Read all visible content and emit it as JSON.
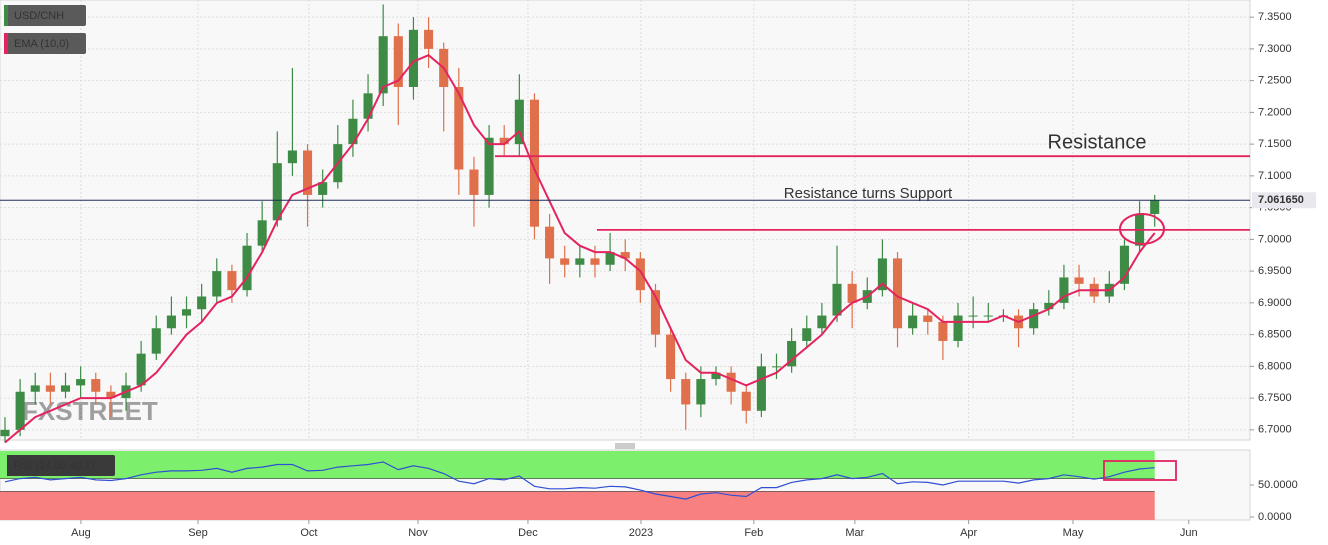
{
  "chart_data": [
    {
      "type": "candlestick",
      "watermark": "FXSTREET",
      "categories": [
        null,
        null,
        null,
        null,
        null,
        null,
        null,
        null,
        null,
        null,
        null,
        null,
        null,
        null,
        null,
        null,
        null,
        null,
        null,
        null,
        null,
        null,
        null,
        null,
        null,
        null,
        null,
        null,
        null,
        null,
        null,
        null,
        null,
        null,
        null,
        null,
        null,
        null,
        null,
        null,
        null,
        null,
        null,
        null,
        null,
        null,
        null,
        null,
        null,
        null,
        null,
        null,
        null,
        null,
        null,
        null,
        null,
        null,
        null,
        null,
        null,
        null,
        null,
        null,
        null,
        null,
        null,
        null,
        null,
        null,
        null,
        null,
        null,
        null,
        null,
        null,
        null
      ],
      "xlim": [
        -0.33,
        82.3
      ],
      "ylim": [
        6.684,
        7.377
      ],
      "yticks": [
        {
          "value": 6.7,
          "label": "6.7000"
        },
        {
          "value": 6.75,
          "label": "6.7500"
        },
        {
          "value": 6.8,
          "label": "6.8000"
        },
        {
          "value": 6.85,
          "label": "6.8500"
        },
        {
          "value": 6.9,
          "label": "6.9000"
        },
        {
          "value": 6.95,
          "label": "6.9500"
        },
        {
          "value": 7.0,
          "label": "7.0000"
        },
        {
          "value": 7.05,
          "label": "7.0500"
        },
        {
          "value": 7.1,
          "label": "7.1000"
        },
        {
          "value": 7.15,
          "label": "7.1500"
        },
        {
          "value": 7.2,
          "label": "7.2000"
        },
        {
          "value": 7.25,
          "label": "7.2500"
        },
        {
          "value": 7.3,
          "label": "7.3000"
        },
        {
          "value": 7.35,
          "label": "7.3500"
        }
      ],
      "grid": true,
      "series": [
        {
          "name": "USD/CNH",
          "up_color": "#3d8b45",
          "down_color": "#e0704c",
          "open": [
            6.69,
            6.7,
            6.76,
            6.77,
            6.76,
            6.77,
            6.78,
            6.76,
            6.75,
            6.77,
            6.82,
            6.86,
            6.88,
            6.89,
            6.91,
            6.95,
            6.92,
            6.99,
            7.03,
            7.12,
            7.14,
            7.07,
            7.09,
            7.15,
            7.19,
            7.23,
            7.32,
            7.24,
            7.33,
            7.3,
            7.24,
            7.11,
            7.07,
            7.16,
            7.15,
            7.22,
            7.02,
            6.97,
            6.96,
            6.97,
            6.96,
            6.98,
            6.97,
            6.92,
            6.85,
            6.78,
            6.74,
            6.78,
            6.79,
            6.76,
            6.73,
            6.8,
            6.8,
            6.84,
            6.86,
            6.88,
            6.93,
            6.9,
            6.92,
            6.97,
            6.86,
            6.88,
            6.87,
            6.84,
            6.88,
            6.88,
            6.88,
            6.88,
            6.86,
            6.89,
            6.9,
            6.94,
            6.93,
            6.91,
            6.93,
            6.99,
            7.04
          ],
          "high": [
            6.72,
            6.78,
            6.79,
            6.79,
            6.79,
            6.8,
            6.79,
            6.77,
            6.79,
            6.84,
            6.88,
            6.91,
            6.91,
            6.93,
            6.97,
            6.96,
            7.01,
            7.06,
            7.17,
            7.27,
            7.15,
            7.11,
            7.18,
            7.22,
            7.26,
            7.37,
            7.34,
            7.35,
            7.35,
            7.31,
            7.27,
            7.13,
            7.18,
            7.18,
            7.26,
            7.23,
            7.04,
            6.99,
            6.99,
            6.99,
            7.01,
            7.0,
            6.98,
            6.93,
            6.86,
            6.79,
            6.8,
            6.8,
            6.8,
            6.77,
            6.82,
            6.82,
            6.86,
            6.88,
            6.9,
            6.99,
            6.95,
            6.94,
            7.0,
            6.98,
            6.9,
            6.89,
            6.88,
            6.9,
            6.91,
            6.9,
            6.89,
            6.89,
            6.9,
            6.92,
            6.96,
            6.96,
            6.94,
            6.95,
            7.0,
            7.06,
            7.07
          ],
          "low": [
            6.68,
            6.69,
            6.74,
            6.74,
            6.75,
            6.75,
            6.74,
            6.72,
            6.73,
            6.76,
            6.81,
            6.85,
            6.86,
            6.87,
            6.9,
            6.9,
            6.91,
            6.98,
            7.02,
            7.1,
            7.02,
            7.05,
            7.08,
            7.13,
            7.17,
            7.21,
            7.18,
            7.22,
            7.27,
            7.17,
            7.07,
            7.02,
            7.05,
            7.13,
            7.13,
            7.0,
            6.93,
            6.94,
            6.94,
            6.94,
            6.95,
            6.95,
            6.9,
            6.83,
            6.76,
            6.7,
            6.72,
            6.77,
            6.74,
            6.71,
            6.72,
            6.78,
            6.79,
            6.83,
            6.85,
            6.87,
            6.86,
            6.89,
            6.91,
            6.83,
            6.85,
            6.85,
            6.81,
            6.83,
            6.86,
            6.87,
            6.87,
            6.83,
            6.85,
            6.88,
            6.89,
            6.91,
            6.9,
            6.9,
            6.92,
            6.98,
            7.02
          ],
          "close": [
            6.7,
            6.76,
            6.77,
            6.76,
            6.77,
            6.78,
            6.76,
            6.75,
            6.77,
            6.82,
            6.86,
            6.88,
            6.89,
            6.91,
            6.95,
            6.92,
            6.99,
            7.03,
            7.12,
            7.14,
            7.07,
            7.09,
            7.15,
            7.19,
            7.23,
            7.32,
            7.24,
            7.33,
            7.3,
            7.24,
            7.11,
            7.07,
            7.16,
            7.15,
            7.22,
            7.02,
            6.97,
            6.96,
            6.97,
            6.96,
            6.98,
            6.97,
            6.92,
            6.85,
            6.78,
            6.74,
            6.78,
            6.79,
            6.76,
            6.73,
            6.8,
            6.8,
            6.84,
            6.86,
            6.88,
            6.93,
            6.9,
            6.92,
            6.97,
            6.86,
            6.88,
            6.87,
            6.84,
            6.88,
            6.88,
            6.88,
            6.88,
            6.86,
            6.89,
            6.9,
            6.94,
            6.93,
            6.91,
            6.93,
            6.99,
            7.04,
            7.062
          ]
        },
        {
          "name": "EMA (10,0)",
          "type": "line",
          "color": "#e3245f",
          "values": [
            6.68,
            6.7,
            6.72,
            6.73,
            6.74,
            6.75,
            6.75,
            6.75,
            6.76,
            6.77,
            6.79,
            6.82,
            6.85,
            6.87,
            6.9,
            6.91,
            6.94,
            6.98,
            7.03,
            7.07,
            7.08,
            7.09,
            7.12,
            7.15,
            7.19,
            7.24,
            7.25,
            7.28,
            7.29,
            7.27,
            7.23,
            7.18,
            7.15,
            7.15,
            7.17,
            7.11,
            7.06,
            7.01,
            6.99,
            6.98,
            6.98,
            6.97,
            6.95,
            6.91,
            6.86,
            6.81,
            6.79,
            6.79,
            6.78,
            6.77,
            6.78,
            6.79,
            6.81,
            6.83,
            6.85,
            6.88,
            6.9,
            6.91,
            6.93,
            6.91,
            6.9,
            6.89,
            6.87,
            6.87,
            6.87,
            6.87,
            6.88,
            6.87,
            6.88,
            6.89,
            6.91,
            6.92,
            6.92,
            6.92,
            6.94,
            6.98,
            7.01
          ]
        }
      ],
      "annotations": [
        {
          "text": "Resistance",
          "value": 7.131,
          "color": "#e3245f"
        },
        {
          "text": "Resistance turns Support",
          "value": 7.015,
          "color": "#e3245f"
        }
      ],
      "last_price": {
        "value": 7.06165,
        "label": "7.061650"
      }
    },
    {
      "type": "line",
      "categories": [
        null,
        null,
        null,
        null,
        null,
        null,
        null,
        null,
        null,
        null,
        null,
        null,
        null,
        null,
        null,
        null,
        null,
        null,
        null,
        null,
        null,
        null,
        null,
        null,
        null,
        null,
        null,
        null,
        null,
        null,
        null,
        null,
        null,
        null,
        null,
        null,
        null,
        null,
        null,
        null,
        null,
        null,
        null,
        null,
        null,
        null,
        null,
        null,
        null,
        null,
        null,
        null,
        null,
        null,
        null,
        null,
        null,
        null,
        null,
        null,
        null,
        null,
        null,
        null,
        null,
        null,
        null,
        null,
        null,
        null,
        null,
        null,
        null,
        null,
        null,
        null,
        null
      ],
      "xlim": [
        -0.33,
        82.3
      ],
      "xticks": [
        {
          "value": 5.02,
          "label": "Aug"
        },
        {
          "value": 12.76,
          "label": "Sep"
        },
        {
          "value": 20.09,
          "label": "Oct"
        },
        {
          "value": 27.3,
          "label": "Nov"
        },
        {
          "value": 34.57,
          "label": "Dec"
        },
        {
          "value": 42.04,
          "label": "2023"
        },
        {
          "value": 49.5,
          "label": "Feb"
        },
        {
          "value": 56.18,
          "label": "Mar"
        },
        {
          "value": 63.7,
          "label": "Apr"
        },
        {
          "value": 70.6,
          "label": "May"
        },
        {
          "value": 78.25,
          "label": "Jun"
        }
      ],
      "ylim": [
        -4.7,
        104.7
      ],
      "yticks": [
        {
          "value": 0,
          "label": "0.0000"
        },
        {
          "value": 50,
          "label": "50.0000"
        }
      ],
      "upper_level": 60,
      "lower_level": 40,
      "upper_color": "#7cf06c",
      "lower_color": "#f88080",
      "series": [
        {
          "name": "RSI (14,60,40,1)",
          "color": "#2f4fd4",
          "values": [
            55,
            60,
            62,
            58,
            60,
            62,
            58,
            57,
            60,
            66,
            70,
            72,
            72,
            73,
            76,
            70,
            76,
            78,
            82,
            82,
            72,
            73,
            78,
            80,
            82,
            86,
            74,
            80,
            76,
            68,
            56,
            52,
            60,
            58,
            64,
            48,
            44,
            44,
            46,
            45,
            48,
            47,
            42,
            36,
            32,
            28,
            36,
            38,
            34,
            32,
            46,
            46,
            54,
            58,
            60,
            66,
            60,
            62,
            68,
            52,
            55,
            54,
            50,
            56,
            56,
            56,
            56,
            53,
            58,
            60,
            66,
            63,
            59,
            63,
            70,
            75,
            77
          ]
        }
      ]
    }
  ]
}
